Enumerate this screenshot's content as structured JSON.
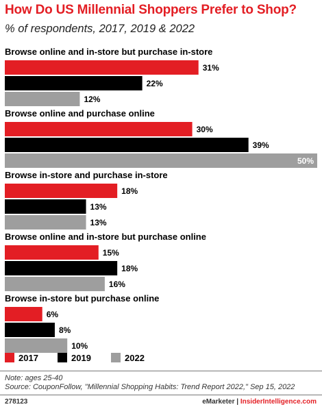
{
  "header": {
    "title": "How Do US Millennial Shoppers Prefer to Shop?",
    "subtitle": "% of respondents, 2017, 2019 & 2022"
  },
  "colors": {
    "s2017": "#e31e24",
    "s2019": "#000000",
    "s2022": "#9e9e9e",
    "title": "#e31e24"
  },
  "chart_data": {
    "type": "bar",
    "orientation": "horizontal",
    "title": "How Do US Millennial Shoppers Prefer to Shop?",
    "subtitle": "% of respondents, 2017, 2019 & 2022",
    "categories": [
      "Browse online and in-store but purchase in-store",
      "Browse online and purchase online",
      "Browse in-store and purchase in-store",
      "Browse online and in-store but purchase online",
      "Browse in-store but purchase online"
    ],
    "series": [
      {
        "name": "2017",
        "color": "#e31e24",
        "values": [
          31,
          30,
          18,
          15,
          6
        ]
      },
      {
        "name": "2019",
        "color": "#000000",
        "values": [
          22,
          39,
          13,
          18,
          8
        ]
      },
      {
        "name": "2022",
        "color": "#9e9e9e",
        "values": [
          12,
          50,
          13,
          16,
          10
        ]
      }
    ],
    "unit": "%",
    "xlim": [
      0,
      50
    ],
    "grid": false,
    "legend_position": "bottom-left"
  },
  "footer": {
    "note": "Note: ages 25-40",
    "source": "Source: CouponFollow, \"Millennial Shopping Habits: Trend Report 2022,\" Sep 15, 2022",
    "code": "278123",
    "brand_emarketer": "eMarketer",
    "brand_separator": "|",
    "brand_insider": "InsiderIntelligence.com"
  }
}
